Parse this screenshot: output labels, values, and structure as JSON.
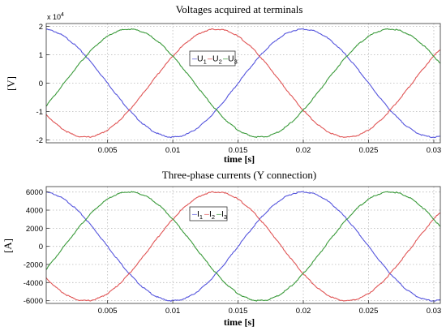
{
  "chart_data": [
    {
      "type": "line",
      "title": "Voltages acquired at terminals",
      "xlabel": "time [s]",
      "ylabel": "[V]",
      "y_multiplier_label": "x 10",
      "y_multiplier_exponent": "4",
      "xlim": [
        0.0003,
        0.0305
      ],
      "ylim": [
        -2.1,
        2.1
      ],
      "xticks": [
        0.005,
        0.01,
        0.015,
        0.02,
        0.025,
        0.03
      ],
      "xtick_labels": [
        "0.005",
        "0.01",
        "0.015",
        "0.02",
        "0.025",
        "0.03"
      ],
      "yticks": [
        -2,
        -1,
        0,
        1,
        2
      ],
      "ytick_labels": [
        "-2",
        "-1",
        "0",
        "1",
        "2"
      ],
      "grid": true,
      "legend_position": "center-right",
      "frequency_hz": 50,
      "series": [
        {
          "name": "U1",
          "legend_main": "U",
          "legend_sub": "1",
          "color": "#5555dd",
          "amplitude": 1.9,
          "peak_time": 0.0
        },
        {
          "name": "U2",
          "legend_main": "U",
          "legend_sub": "2",
          "color": "#e05555",
          "amplitude": 1.9,
          "peak_time": 0.01333
        },
        {
          "name": "U3",
          "legend_main": "U",
          "legend_sub": "3",
          "color": "#3a9a3a",
          "amplitude": 1.9,
          "peak_time": 0.00667
        }
      ]
    },
    {
      "type": "line",
      "title": "Three-phase currents (Y connection)",
      "xlabel": "time [s]",
      "ylabel": "[A]",
      "xlim": [
        0.0003,
        0.0305
      ],
      "ylim": [
        -6300,
        6600
      ],
      "xticks": [
        0.005,
        0.01,
        0.015,
        0.02,
        0.025,
        0.03
      ],
      "xtick_labels": [
        "0.005",
        "0.01",
        "0.015",
        "0.02",
        "0.025",
        "0.03"
      ],
      "yticks": [
        -6000,
        -4000,
        -2000,
        0,
        2000,
        4000,
        6000
      ],
      "ytick_labels": [
        "-6000",
        "-4000",
        "-2000",
        "0",
        "2000",
        "4000",
        "6000"
      ],
      "grid": true,
      "legend_position": "center-right",
      "frequency_hz": 50,
      "series": [
        {
          "name": "I1",
          "legend_main": "I",
          "legend_sub": "1",
          "color": "#5555dd",
          "amplitude": 6000,
          "peak_time": 0.0
        },
        {
          "name": "I2",
          "legend_main": "I",
          "legend_sub": "2",
          "color": "#e05555",
          "amplitude": 6000,
          "peak_time": 0.01333
        },
        {
          "name": "I3",
          "legend_main": "I",
          "legend_sub": "3",
          "color": "#3a9a3a",
          "amplitude": 6000,
          "peak_time": 0.00667
        }
      ]
    }
  ]
}
